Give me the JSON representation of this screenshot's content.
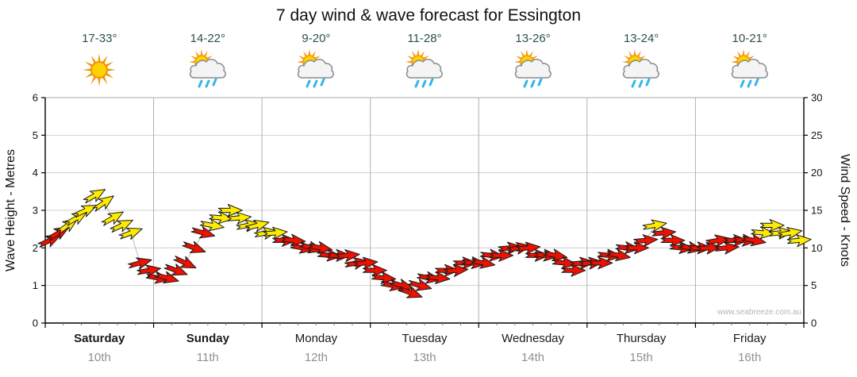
{
  "title": "7 day wind & wave forecast for Essington",
  "watermark": "www.seabreeze.com.au",
  "colors": {
    "arrow_yellow": "#ffeb00",
    "arrow_red": "#ee1100",
    "arrow_outline": "#1a1a1a",
    "grid_horizontal": "#d0d0d0",
    "grid_vertical": "#b0b0b0",
    "axis": "#000000",
    "temp_text": "#2f4f4f",
    "date_text": "#909090",
    "connector_line": "#b5b5b5",
    "sun_core": "#ffd200",
    "sun_ray": "#f29100",
    "cloud_fill": "#f4f4f4",
    "cloud_stroke": "#8c8c8c",
    "rain_drop": "#35b6e9"
  },
  "axes": {
    "left_label": "Wave Height - Metres",
    "right_label": "Wind Speed - Knots",
    "left_ticks": [
      0,
      1,
      2,
      3,
      4,
      5,
      6
    ],
    "right_ticks": [
      0,
      5,
      10,
      15,
      20,
      25,
      30
    ],
    "left_max": 6,
    "right_max": 30
  },
  "days": [
    {
      "name": "Saturday",
      "date": "10th",
      "temp": "17-33°",
      "icon": "sun",
      "bold": true
    },
    {
      "name": "Sunday",
      "date": "11th",
      "temp": "14-22°",
      "icon": "sun-cloud-rain",
      "bold": true
    },
    {
      "name": "Monday",
      "date": "12th",
      "temp": "9-20°",
      "icon": "sun-cloud-rain",
      "bold": false
    },
    {
      "name": "Tuesday",
      "date": "13th",
      "temp": "11-28°",
      "icon": "sun-cloud-rain",
      "bold": false
    },
    {
      "name": "Wednesday",
      "date": "14th",
      "temp": "13-26°",
      "icon": "sun-cloud-rain",
      "bold": false
    },
    {
      "name": "Thursday",
      "date": "15th",
      "temp": "13-24°",
      "icon": "sun-cloud-rain",
      "bold": false
    },
    {
      "name": "Friday",
      "date": "16th",
      "temp": "10-21°",
      "icon": "sun-cloud-rain",
      "bold": false
    }
  ],
  "chart_data": {
    "type": "wind-arrows",
    "title": "7 day wind & wave forecast for Essington",
    "ylabel_left": "Wave Height - Metres",
    "ylabel_right": "Wind Speed - Knots",
    "ylim_left": [
      0,
      6
    ],
    "ylim_right": [
      0,
      30
    ],
    "x_categories": [
      "Saturday 10th",
      "Sunday 11th",
      "Monday 12th",
      "Tuesday 13th",
      "Wednesday 14th",
      "Thursday 15th",
      "Friday 16th"
    ],
    "points_per_day": 12,
    "legend": "arrow color: yellow = stronger wind (≈12+ knots), red = lighter wind",
    "wind_knots": [
      11,
      12,
      13,
      14,
      15,
      17,
      16,
      14,
      13,
      12,
      8,
      7,
      6,
      6,
      7,
      8,
      10,
      12,
      13,
      14,
      15,
      14,
      13,
      13,
      12,
      12,
      11,
      11,
      10,
      10,
      10,
      9,
      9,
      9,
      8,
      8,
      7,
      6,
      5,
      5,
      4,
      5,
      6,
      6,
      7,
      7,
      8,
      8,
      8,
      9,
      9,
      10,
      10,
      10,
      9,
      9,
      9,
      8,
      7,
      8,
      8,
      8,
      9,
      9,
      10,
      10,
      11,
      13,
      12,
      11,
      10,
      10,
      10,
      10,
      11,
      10,
      11,
      11,
      11,
      12,
      13,
      12,
      12,
      11
    ],
    "arrow_colors": [
      "r",
      "r",
      "y",
      "y",
      "y",
      "y",
      "y",
      "y",
      "y",
      "y",
      "r",
      "r",
      "r",
      "r",
      "r",
      "r",
      "r",
      "r",
      "y",
      "y",
      "y",
      "y",
      "y",
      "y",
      "y",
      "y",
      "r",
      "r",
      "r",
      "r",
      "r",
      "r",
      "r",
      "r",
      "r",
      "r",
      "r",
      "r",
      "r",
      "r",
      "r",
      "r",
      "r",
      "r",
      "r",
      "r",
      "r",
      "r",
      "r",
      "r",
      "r",
      "r",
      "r",
      "r",
      "r",
      "r",
      "r",
      "r",
      "r",
      "r",
      "r",
      "r",
      "r",
      "r",
      "r",
      "r",
      "r",
      "y",
      "r",
      "r",
      "r",
      "r",
      "r",
      "r",
      "r",
      "r",
      "r",
      "r",
      "r",
      "y",
      "y",
      "y",
      "y",
      "y"
    ],
    "wind_dir_deg": [
      -25,
      -30,
      -35,
      -30,
      -25,
      -30,
      -35,
      -30,
      -25,
      -20,
      -15,
      -10,
      10,
      15,
      20,
      25,
      20,
      15,
      10,
      5,
      0,
      -5,
      -10,
      -15,
      -10,
      -5,
      0,
      5,
      10,
      15,
      10,
      5,
      0,
      -5,
      -10,
      -5,
      0,
      5,
      10,
      15,
      20,
      15,
      10,
      5,
      0,
      -5,
      0,
      5,
      10,
      5,
      0,
      -5,
      -10,
      -5,
      0,
      5,
      10,
      5,
      0,
      -5,
      -5,
      0,
      5,
      10,
      5,
      0,
      -5,
      -10,
      -5,
      0,
      5,
      10,
      0,
      -5,
      -10,
      -5,
      0,
      5,
      10,
      5,
      0,
      -5,
      -10,
      -5
    ]
  }
}
